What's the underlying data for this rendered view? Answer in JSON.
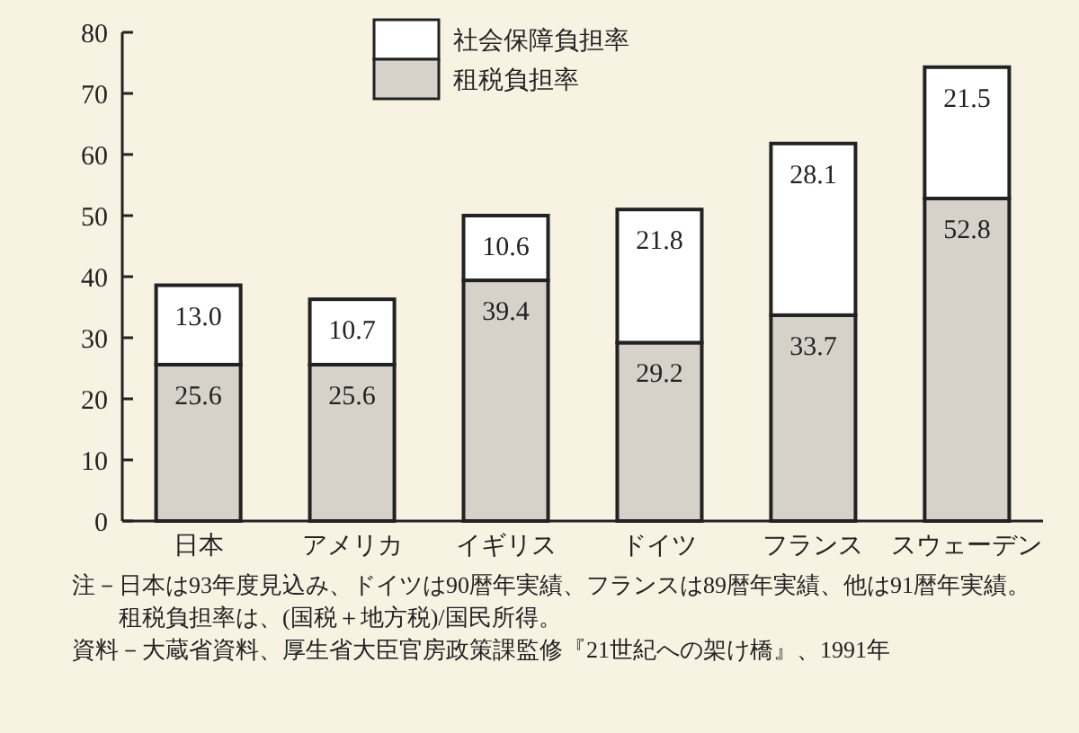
{
  "chart_data": {
    "type": "bar",
    "stacked": true,
    "categories": [
      "日本",
      "アメリカ",
      "イギリス",
      "ドイツ",
      "フランス",
      "スウェーデン"
    ],
    "series": [
      {
        "name": "租税負担率",
        "color": "#d6d2ca",
        "values": [
          25.6,
          25.6,
          39.4,
          29.2,
          33.7,
          52.8
        ],
        "value_labels": [
          "25.6",
          "25.6",
          "39.4",
          "29.2",
          "33.7",
          "52.8"
        ]
      },
      {
        "name": "社会保障負担率",
        "color": "#ffffff",
        "values": [
          13.0,
          10.7,
          10.6,
          21.8,
          28.1,
          21.5
        ],
        "value_labels": [
          "13.0",
          "10.7",
          "10.6",
          "21.8",
          "28.1",
          "21.5"
        ]
      }
    ],
    "ylim": [
      0,
      80
    ],
    "yticks": [
      0,
      10,
      20,
      30,
      40,
      50,
      60,
      70,
      80
    ],
    "grid": false,
    "legend": "top left",
    "annotations": [
      "注－日本は93年度見込み、ドイツは90暦年実績、フランスは89暦年実績、他は91暦年実績。租税負担率は、(国税＋地方税)/国民所得。",
      "資料－大蔵省資料、厚生省大臣官房政策課監修『21世紀への架け橋』、1991年"
    ]
  }
}
